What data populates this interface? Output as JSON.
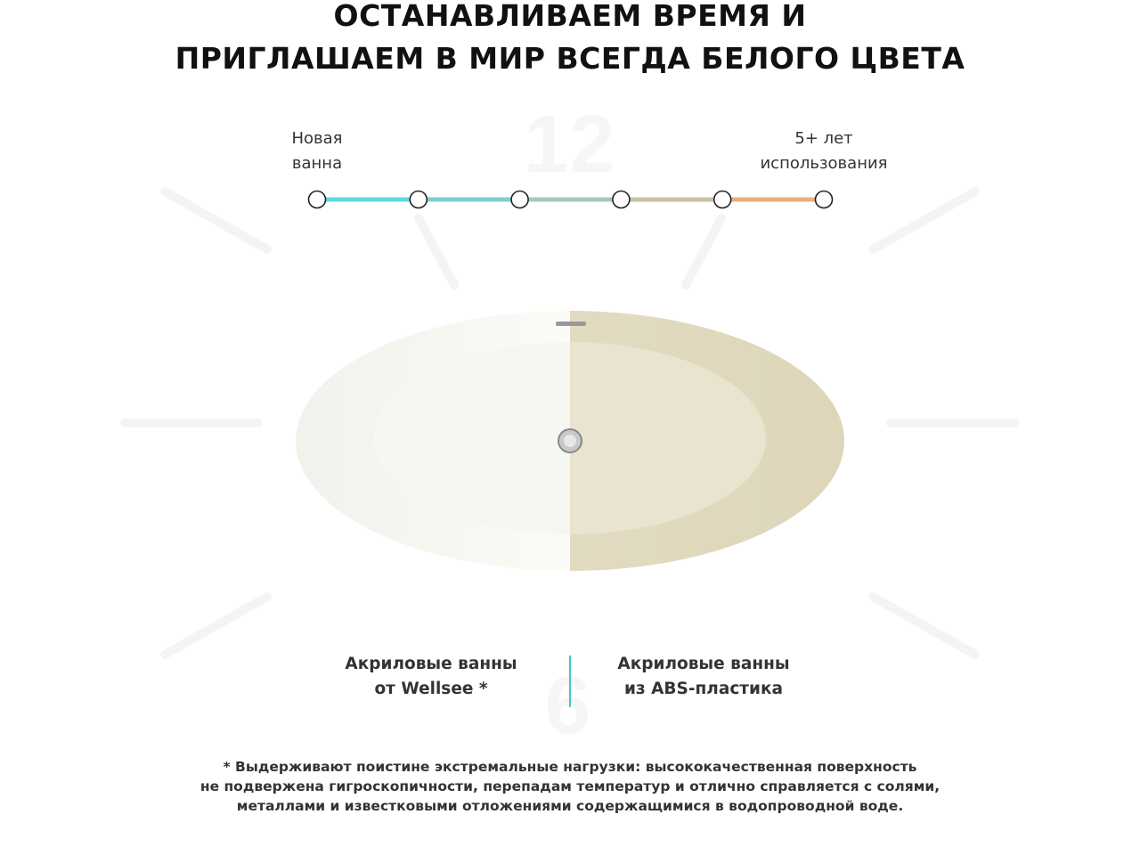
{
  "heading": {
    "line1": "ОСТАНАВЛИВАЕМ ВРЕМЯ И",
    "line2": "ПРИГЛАШАЕМ В МИР ВСЕГДА БЕЛОГО ЦВЕТА"
  },
  "clock": {
    "top": "12",
    "bottom": "6"
  },
  "timeline": {
    "start_label_1": "Новая",
    "start_label_2": "ванна",
    "end_label_1": "5+ лет",
    "end_label_2": "использования",
    "points": 6,
    "colors": [
      "#5fd8dd",
      "#7fcfcf",
      "#a9c9b8",
      "#c8c2a4",
      "#e9b07a"
    ]
  },
  "comparison": {
    "left_1": "Акриловые ванны",
    "left_2": "от Wellsee *",
    "right_1": "Акриловые ванны",
    "right_2": "из ABS-пластика",
    "accent": "#4cc7c7"
  },
  "footnote": {
    "line1": "* Выдерживают поистине экстремальные нагрузки: высококачественная поверхность",
    "line2": "не подвержена гигроскопичности, перепадам температур и отлично справляется с солями,",
    "line3": "металлами и известковыми отложениями содержащимися в водопроводной воде."
  }
}
